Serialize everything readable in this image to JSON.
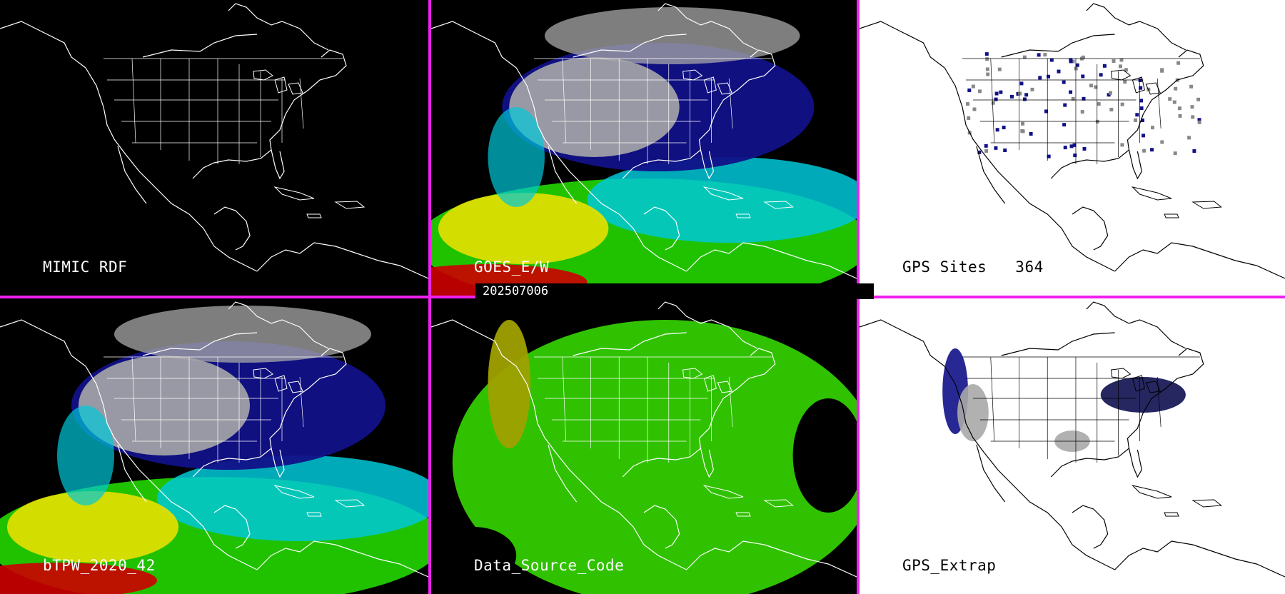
{
  "date_label": "202507006",
  "panels": [
    {
      "id": "mimic",
      "label": "MIMIC RDF",
      "theme": "dark",
      "layer": "none"
    },
    {
      "id": "goes",
      "label": "GOES_E/W",
      "theme": "dark",
      "layer": "tpw"
    },
    {
      "id": "gps-sites",
      "label": "GPS Sites",
      "count": "364",
      "theme": "light",
      "layer": "sites"
    },
    {
      "id": "btpw",
      "label": "bTPW_2020_42",
      "theme": "dark",
      "layer": "tpw"
    },
    {
      "id": "source",
      "label": "Data_Source_Code",
      "theme": "dark",
      "layer": "source"
    },
    {
      "id": "gps-extrap",
      "label": "GPS_Extrap",
      "theme": "light",
      "layer": "extrap"
    }
  ],
  "colors": {
    "divider": "#ee22ee",
    "ocean_dark": "#000000",
    "ocean_light": "#ffffff",
    "coast_dark": "#ffffff",
    "coast_light": "#000000",
    "tpw_low": "#111188",
    "tpw_mid": "#00c8d8",
    "tpw_green": "#22cc00",
    "tpw_yellow": "#e8e000",
    "tpw_red": "#cc0000",
    "source_green": "#33cc00",
    "source_olive": "#a0a000",
    "cloud_grey": "#a8a8a8"
  }
}
